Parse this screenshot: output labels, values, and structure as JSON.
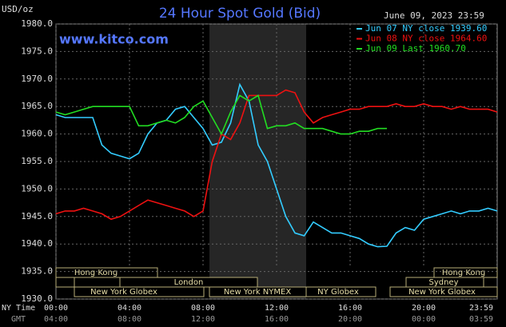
{
  "chart_data": {
    "type": "line",
    "title": "24 Hour Spot Gold (Bid)",
    "timestamp": "June 09, 2023 23:59",
    "website": "www.kitco.com",
    "y_unit": "USD/oz",
    "x": [
      0,
      0.5,
      1,
      1.5,
      2,
      2.5,
      3,
      3.5,
      4,
      4.5,
      5,
      5.5,
      6,
      6.5,
      7,
      7.5,
      8,
      8.5,
      9,
      9.5,
      10,
      10.5,
      11,
      11.5,
      12,
      12.5,
      13,
      13.5,
      14,
      14.5,
      15,
      15.5,
      16,
      16.5,
      17,
      17.5,
      18,
      18.5,
      19,
      19.5,
      20,
      20.5,
      21,
      21.5,
      22,
      22.5,
      23,
      23.5,
      24
    ],
    "series": [
      {
        "name": "Jun 07 NY close 1939.60",
        "color": "#33ccff",
        "values": [
          1963.5,
          1963,
          1963,
          1963,
          1963,
          1958,
          1956.5,
          1956,
          1955.5,
          1956.5,
          1960,
          1962,
          1962.5,
          1964.5,
          1965,
          1963,
          1961,
          1958,
          1958.5,
          1962,
          1969,
          1966,
          1958,
          1955,
          1950,
          1945,
          1942,
          1941.5,
          1944,
          1943,
          1942,
          1942,
          1941.5,
          1941,
          1940,
          1939.5,
          1939.6,
          1942,
          1943,
          1942.5,
          1944.5,
          1945,
          1945.5,
          1946,
          1945.5,
          1946,
          1946,
          1946.5,
          1946
        ]
      },
      {
        "name": "Jun 08 NY close 1964.60",
        "color": "#ee1111",
        "values": [
          1945.5,
          1946,
          1946,
          1946.5,
          1946,
          1945.5,
          1944.5,
          1945,
          1946,
          1947,
          1948,
          1947.5,
          1947,
          1946.5,
          1946,
          1945,
          1946,
          1955,
          1960,
          1959,
          1962,
          1967,
          1967,
          1967,
          1967,
          1968,
          1967.5,
          1964,
          1962,
          1963,
          1963.5,
          1964,
          1964.5,
          1964.5,
          1965,
          1965,
          1965,
          1965.5,
          1965,
          1965,
          1965.5,
          1965,
          1965,
          1964.5,
          1965,
          1964.5,
          1964.5,
          1964.5,
          1964
        ]
      },
      {
        "name": "Jun 09 Last 1960.70",
        "color": "#22dd22",
        "values": [
          1964,
          1963.5,
          1964,
          1964.5,
          1965,
          1965,
          1965,
          1965,
          1965,
          1961.5,
          1961.5,
          1962,
          1962.5,
          1962,
          1963,
          1965,
          1966,
          1963,
          1960,
          1964,
          1967,
          1966,
          1967,
          1961,
          1961.5,
          1961.5,
          1962,
          1961,
          1961,
          1961,
          1960.5,
          1960,
          1960,
          1960.5,
          1960.5,
          1961,
          1961,
          null,
          null,
          null,
          null,
          null,
          null,
          null,
          null,
          null,
          null,
          null,
          null
        ]
      }
    ],
    "xlim": [
      0,
      24
    ],
    "xticks": [
      {
        "value": 0,
        "label": "00:00"
      },
      {
        "value": 4,
        "label": "04:00"
      },
      {
        "value": 8,
        "label": "08:00"
      },
      {
        "value": 12,
        "label": "12:00"
      },
      {
        "value": 16,
        "label": "16:00"
      },
      {
        "value": 20,
        "label": "20:00"
      },
      {
        "value": 23.98,
        "label": "23:59"
      }
    ],
    "gmt_labels": [
      "04:00",
      "08:00",
      "12:00",
      "16:00",
      "20:00",
      "00:00",
      "03:59"
    ],
    "x_row_labels": [
      "NY Time",
      "GMT"
    ],
    "ylim": [
      1930,
      1980
    ],
    "yticks": [
      {
        "value": 1930,
        "label": "1930.0"
      },
      {
        "value": 1935,
        "label": "1935.0"
      },
      {
        "value": 1940,
        "label": "1940.0"
      },
      {
        "value": 1945,
        "label": "1945.0"
      },
      {
        "value": 1950,
        "label": "1950.0"
      },
      {
        "value": 1955,
        "label": "1955.0"
      },
      {
        "value": 1960,
        "label": "1960.0"
      },
      {
        "value": 1965,
        "label": "1965.0"
      },
      {
        "value": 1970,
        "label": "1970.0"
      },
      {
        "value": 1975,
        "label": "1975.0"
      },
      {
        "value": 1980,
        "label": "1980.0"
      }
    ],
    "grid": true,
    "legend": "top-right",
    "sessions": [
      "Hong Kong",
      "London",
      "New York Globex",
      "New York NYMEX",
      "NY Globex",
      "Hong Kong",
      "Sydney",
      "New York Globex"
    ]
  }
}
